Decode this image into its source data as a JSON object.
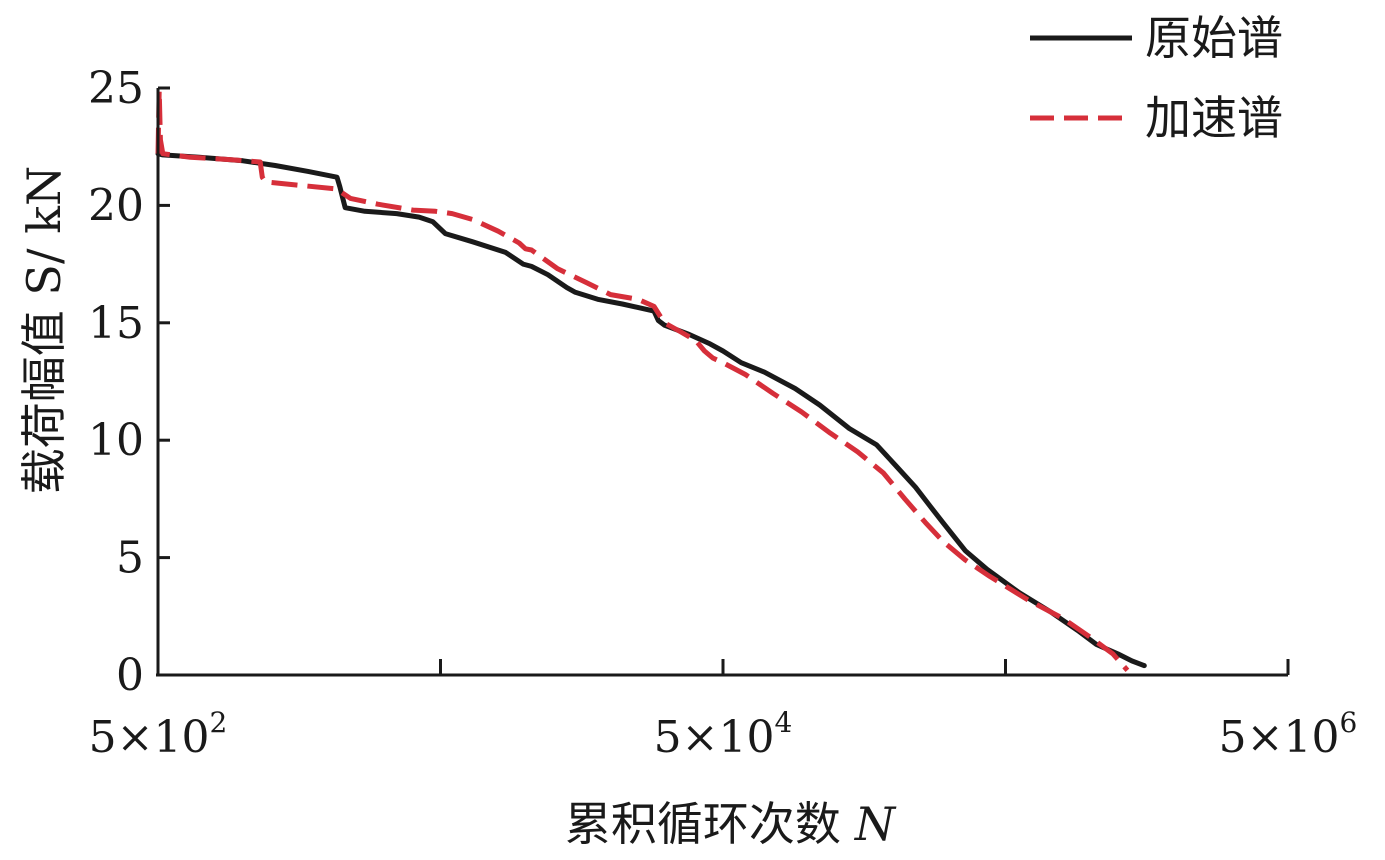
{
  "chart_data": {
    "type": "line",
    "xlabel": "累积循环次数",
    "xlabel_var": "N",
    "ylabel": "载荷幅值 S/ kN",
    "x_scale": "log",
    "xlim": [
      500,
      5000000
    ],
    "ylim": [
      0,
      25
    ],
    "x_ticks": [
      500,
      5000,
      50000,
      500000,
      5000000
    ],
    "x_tick_labels": [
      {
        "value": 500,
        "mantissa": "5×10",
        "exponent": "2"
      },
      {
        "value": 50000,
        "mantissa": "5×10",
        "exponent": "4"
      },
      {
        "value": 5000000,
        "mantissa": "5×10",
        "exponent": "6"
      }
    ],
    "y_ticks": [
      0,
      5,
      10,
      15,
      20,
      25
    ],
    "y_tick_labels": [
      "0",
      "5",
      "10",
      "15",
      "20",
      "25"
    ],
    "legend_position": "top-right",
    "series": [
      {
        "name": "原始谱",
        "color": "#1a1a1a",
        "dash": "solid",
        "x": [
          500,
          520,
          700,
          1000,
          1300,
          1700,
          2150,
          2200,
          2300,
          2700,
          3500,
          4200,
          4700,
          5200,
          6500,
          8500,
          9800,
          10500,
          12000,
          14000,
          15000,
          18000,
          22000,
          28500,
          29500,
          31000,
          38000,
          45000,
          50000,
          58000,
          70000,
          90000,
          110000,
          140000,
          175000,
          205000,
          240000,
          270000,
          300000,
          360000,
          430000,
          560000,
          720000,
          900000,
          1050000,
          1250000,
          1400000,
          1550000
        ],
        "y": [
          22.2,
          22.15,
          22.05,
          21.9,
          21.7,
          21.45,
          21.2,
          20.8,
          19.9,
          19.75,
          19.65,
          19.5,
          19.3,
          18.8,
          18.45,
          18.0,
          17.5,
          17.4,
          17.05,
          16.5,
          16.3,
          16.0,
          15.8,
          15.5,
          15.1,
          14.9,
          14.5,
          14.1,
          13.8,
          13.3,
          12.9,
          12.2,
          11.5,
          10.5,
          9.8,
          8.9,
          8.0,
          7.2,
          6.5,
          5.3,
          4.5,
          3.5,
          2.7,
          1.9,
          1.3,
          0.9,
          0.6,
          0.4
        ]
      },
      {
        "name": "加速谱",
        "color": "#d62f3a",
        "dash": "dashed",
        "x": [
          500,
          505,
          510,
          520,
          650,
          900,
          1150,
          1170,
          1200,
          1600,
          2150,
          2200,
          2400,
          3000,
          4000,
          4800,
          5500,
          6500,
          8000,
          9500,
          10000,
          10500,
          13000,
          16500,
          20000,
          25000,
          28500,
          31000,
          35000,
          40000,
          43000,
          46000,
          50000,
          60000,
          75000,
          95000,
          120000,
          150000,
          185000,
          220000,
          260000,
          300000,
          360000,
          440000,
          600000,
          800000,
          1000000,
          1200000,
          1350000
        ],
        "y": [
          22.2,
          24.9,
          22.8,
          22.2,
          22.05,
          21.95,
          21.85,
          21.2,
          21.0,
          20.85,
          20.7,
          20.6,
          20.3,
          20.05,
          19.8,
          19.75,
          19.65,
          19.4,
          18.9,
          18.4,
          18.15,
          18.1,
          17.3,
          16.7,
          16.2,
          16.0,
          15.7,
          15.0,
          14.65,
          14.25,
          13.8,
          13.5,
          13.3,
          12.8,
          12.0,
          11.2,
          10.3,
          9.5,
          8.6,
          7.5,
          6.5,
          5.7,
          4.9,
          4.2,
          3.2,
          2.4,
          1.6,
          0.9,
          0.2
        ]
      }
    ]
  }
}
